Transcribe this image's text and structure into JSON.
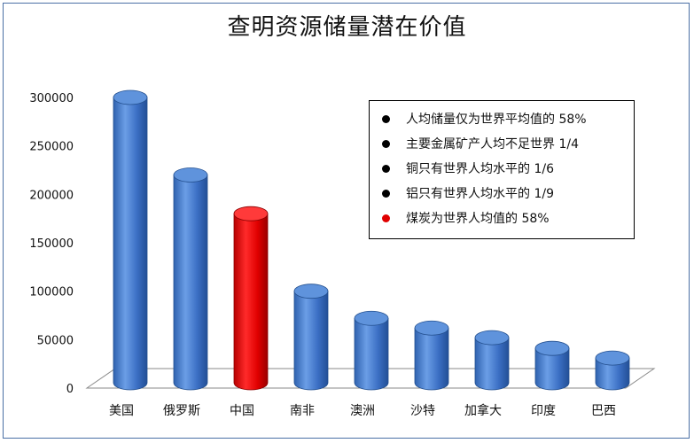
{
  "chart_data": {
    "type": "bar",
    "title": "查明资源储量潜在价值",
    "xlabel": "",
    "ylabel": "",
    "categories": [
      "美国",
      "俄罗斯",
      "中国",
      "南非",
      "澳洲",
      "沙特",
      "加拿大",
      "印度",
      "巴西"
    ],
    "values": [
      300000,
      220000,
      180000,
      100000,
      72000,
      62000,
      52000,
      41000,
      31000
    ],
    "highlight_index": 2,
    "colors": {
      "bar": "#4a7fcf",
      "highlight": "#e00000",
      "floor": "#ffffff"
    },
    "ylim": [
      0,
      300000
    ],
    "yticks": [
      "0",
      "50000",
      "100000",
      "150000",
      "200000",
      "250000",
      "300000"
    ],
    "grid": false,
    "legend_placement": "top-right",
    "notes": [
      {
        "text": "人均储量仅为世界平均值的 58%",
        "color": "#000000"
      },
      {
        "text": "主要金属矿产人均不足世界 1/4",
        "color": "#000000"
      },
      {
        "text": "铜只有世界人均水平的 1/6",
        "color": "#000000"
      },
      {
        "text": "铝只有世界人均水平的 1/9",
        "color": "#000000"
      },
      {
        "text": "煤炭为世界人均值的 58%",
        "color": "#e00000"
      }
    ]
  }
}
